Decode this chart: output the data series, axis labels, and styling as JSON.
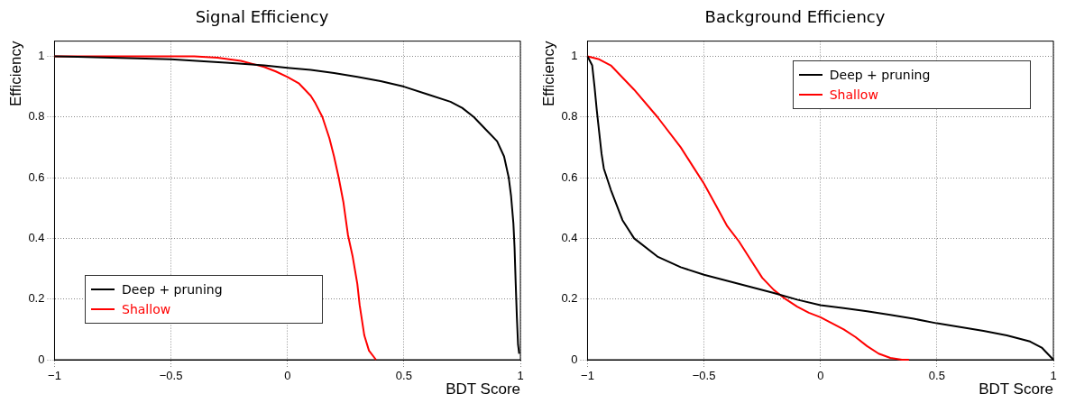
{
  "chart_data": [
    {
      "type": "line",
      "title": "Signal Efficiency",
      "xlabel": "BDT Score",
      "ylabel": "Efficiency",
      "xlim": [
        -1,
        1
      ],
      "xticks": [
        -1,
        -0.5,
        0,
        0.5,
        1
      ],
      "ylim": [
        0,
        1.05
      ],
      "yticks": [
        0,
        0.2,
        0.4,
        0.6,
        0.8,
        1
      ],
      "grid": true,
      "legend": "bottom left",
      "marker": "none",
      "line_style": "solid",
      "series": [
        {
          "name": "Deep + pruning",
          "color": "#000000",
          "x": [
            -1,
            -0.9,
            -0.5,
            -0.25,
            -0.1,
            0,
            0.1,
            0.2,
            0.3,
            0.4,
            0.5,
            0.6,
            0.7,
            0.75,
            0.8,
            0.85,
            0.9,
            0.93,
            0.95,
            0.96,
            0.97,
            0.975,
            0.98,
            0.985,
            0.99,
            0.995
          ],
          "values": [
            1,
            0.998,
            0.99,
            0.978,
            0.97,
            0.962,
            0.955,
            0.945,
            0.932,
            0.918,
            0.9,
            0.875,
            0.85,
            0.83,
            0.8,
            0.76,
            0.72,
            0.67,
            0.6,
            0.54,
            0.45,
            0.37,
            0.25,
            0.14,
            0.05,
            0.02
          ]
        },
        {
          "name": "Shallow",
          "color": "#ff0000",
          "x": [
            -1,
            -0.4,
            -0.3,
            -0.2,
            -0.15,
            -0.1,
            -0.05,
            0,
            0.05,
            0.1,
            0.12,
            0.15,
            0.18,
            0.2,
            0.22,
            0.24,
            0.26,
            0.28,
            0.3,
            0.31,
            0.33,
            0.35,
            0.38
          ],
          "values": [
            1,
            1,
            0.995,
            0.985,
            0.975,
            0.965,
            0.95,
            0.932,
            0.91,
            0.87,
            0.845,
            0.8,
            0.73,
            0.67,
            0.6,
            0.52,
            0.41,
            0.34,
            0.25,
            0.18,
            0.08,
            0.03,
            0
          ]
        }
      ]
    },
    {
      "type": "line",
      "title": "Background Efficiency",
      "xlabel": "BDT Score",
      "ylabel": "Efficiency",
      "xlim": [
        -1,
        1
      ],
      "xticks": [
        -1,
        -0.5,
        0,
        0.5,
        1
      ],
      "ylim": [
        0,
        1.05
      ],
      "yticks": [
        0,
        0.2,
        0.4,
        0.6,
        0.8,
        1
      ],
      "grid": true,
      "legend": "top right",
      "marker": "none",
      "line_style": "solid",
      "series": [
        {
          "name": "Deep + pruning",
          "color": "#000000",
          "x": [
            -1,
            -0.98,
            -0.97,
            -0.96,
            -0.95,
            -0.94,
            -0.93,
            -0.9,
            -0.85,
            -0.8,
            -0.7,
            -0.6,
            -0.5,
            -0.4,
            -0.3,
            -0.2,
            -0.1,
            0,
            0.1,
            0.2,
            0.3,
            0.4,
            0.5,
            0.6,
            0.7,
            0.8,
            0.9,
            0.95,
            1
          ],
          "values": [
            1,
            0.97,
            0.9,
            0.82,
            0.75,
            0.68,
            0.63,
            0.56,
            0.46,
            0.4,
            0.34,
            0.305,
            0.28,
            0.26,
            0.24,
            0.22,
            0.198,
            0.18,
            0.17,
            0.16,
            0.148,
            0.135,
            0.12,
            0.108,
            0.095,
            0.08,
            0.06,
            0.04,
            0
          ]
        },
        {
          "name": "Shallow",
          "color": "#ff0000",
          "x": [
            -1,
            -0.95,
            -0.9,
            -0.85,
            -0.8,
            -0.7,
            -0.6,
            -0.55,
            -0.5,
            -0.45,
            -0.4,
            -0.35,
            -0.3,
            -0.25,
            -0.2,
            -0.15,
            -0.1,
            -0.05,
            0,
            0.05,
            0.1,
            0.15,
            0.2,
            0.25,
            0.3,
            0.35,
            0.38
          ],
          "values": [
            1,
            0.99,
            0.97,
            0.93,
            0.89,
            0.8,
            0.7,
            0.64,
            0.58,
            0.51,
            0.44,
            0.39,
            0.33,
            0.27,
            0.23,
            0.2,
            0.175,
            0.155,
            0.14,
            0.12,
            0.1,
            0.075,
            0.045,
            0.02,
            0.006,
            0,
            0
          ]
        }
      ]
    }
  ]
}
